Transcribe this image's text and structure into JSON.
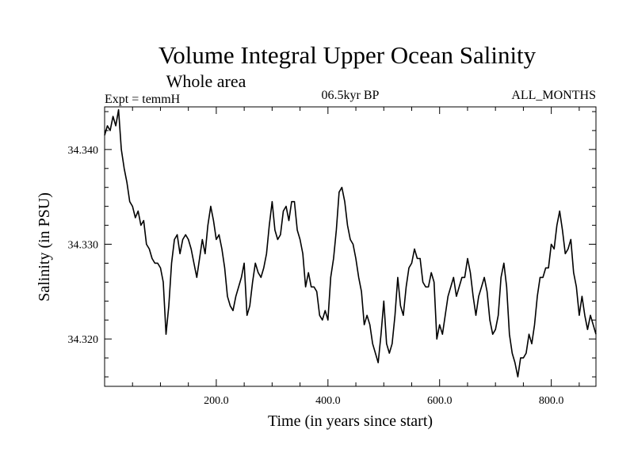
{
  "chart_data": {
    "type": "line",
    "title": "Volume Integral Upper Ocean Salinity",
    "subtitle": "Whole area",
    "annotation_left": "Expt = temmH",
    "annotation_center": "06.5kyr BP",
    "annotation_right": "ALL_MONTHS",
    "xlabel": "Time (in years since start)",
    "ylabel": "Salinity (in PSU)",
    "xlim": [
      0,
      880
    ],
    "ylim": [
      34.315,
      34.3445
    ],
    "xticks": [
      200.0,
      400.0,
      600.0,
      800.0
    ],
    "xtick_labels": [
      "200.0",
      "400.0",
      "600.0",
      "800.0"
    ],
    "yticks": [
      34.32,
      34.33,
      34.34
    ],
    "ytick_labels": [
      "34.320",
      "34.330",
      "34.340"
    ],
    "series": [
      {
        "name": "salinity",
        "x": [
          0,
          5,
          10,
          15,
          20,
          25,
          30,
          35,
          40,
          45,
          50,
          55,
          60,
          65,
          70,
          75,
          80,
          85,
          90,
          95,
          100,
          105,
          110,
          115,
          120,
          125,
          130,
          135,
          140,
          145,
          150,
          155,
          160,
          165,
          170,
          175,
          180,
          185,
          190,
          195,
          200,
          205,
          210,
          215,
          220,
          225,
          230,
          235,
          240,
          245,
          250,
          255,
          260,
          265,
          270,
          275,
          280,
          285,
          290,
          295,
          300,
          305,
          310,
          315,
          320,
          325,
          330,
          335,
          340,
          345,
          350,
          355,
          360,
          365,
          370,
          375,
          380,
          385,
          390,
          395,
          400,
          405,
          410,
          415,
          420,
          425,
          430,
          435,
          440,
          445,
          450,
          455,
          460,
          465,
          470,
          475,
          480,
          485,
          490,
          495,
          500,
          505,
          510,
          515,
          520,
          525,
          530,
          535,
          540,
          545,
          550,
          555,
          560,
          565,
          570,
          575,
          580,
          585,
          590,
          595,
          600,
          605,
          610,
          615,
          620,
          625,
          630,
          635,
          640,
          645,
          650,
          655,
          660,
          665,
          670,
          675,
          680,
          685,
          690,
          695,
          700,
          705,
          710,
          715,
          720,
          725,
          730,
          735,
          740,
          745,
          750,
          755,
          760,
          765,
          770,
          775,
          780,
          785,
          790,
          795,
          800,
          805,
          810,
          815,
          820,
          825,
          830,
          835,
          840,
          845,
          850,
          855,
          860,
          865,
          870,
          875,
          880
        ],
        "values": [
          34.3415,
          34.3425,
          34.342,
          34.3435,
          34.3425,
          34.3442,
          34.34,
          34.338,
          34.3365,
          34.3345,
          34.334,
          34.3328,
          34.3335,
          34.332,
          34.3325,
          34.33,
          34.3295,
          34.3285,
          34.328,
          34.328,
          34.3275,
          34.326,
          34.3205,
          34.3235,
          34.328,
          34.3305,
          34.331,
          34.329,
          34.3305,
          34.331,
          34.3305,
          34.3295,
          34.328,
          34.3265,
          34.3285,
          34.3305,
          34.329,
          34.332,
          34.334,
          34.3325,
          34.3305,
          34.331,
          34.3295,
          34.3275,
          34.3245,
          34.3235,
          34.323,
          34.3245,
          34.3255,
          34.3265,
          34.328,
          34.3225,
          34.3235,
          34.326,
          34.328,
          34.327,
          34.3265,
          34.3275,
          34.329,
          34.332,
          34.3345,
          34.3315,
          34.3305,
          34.331,
          34.3335,
          34.334,
          34.3325,
          34.3345,
          34.3345,
          34.3315,
          34.3305,
          34.329,
          34.3255,
          34.327,
          34.3255,
          34.3255,
          34.325,
          34.3225,
          34.322,
          34.323,
          34.322,
          34.3265,
          34.3285,
          34.3315,
          34.3355,
          34.336,
          34.3345,
          34.332,
          34.3305,
          34.33,
          34.3285,
          34.3265,
          34.325,
          34.3215,
          34.3225,
          34.3215,
          34.3195,
          34.3185,
          34.3175,
          34.3205,
          34.324,
          34.3195,
          34.3185,
          34.3195,
          34.3225,
          34.3265,
          34.3235,
          34.3225,
          34.3255,
          34.3275,
          34.328,
          34.3295,
          34.3285,
          34.3285,
          34.326,
          34.3255,
          34.3255,
          34.327,
          34.326,
          34.32,
          34.3215,
          34.3205,
          34.3225,
          34.3245,
          34.3255,
          34.3265,
          34.3245,
          34.3255,
          34.3265,
          34.3265,
          34.3285,
          34.327,
          34.3245,
          34.3225,
          34.3245,
          34.3255,
          34.3265,
          34.325,
          34.322,
          34.3205,
          34.321,
          34.3225,
          34.3265,
          34.328,
          34.3255,
          34.3205,
          34.3185,
          34.3175,
          34.316,
          34.318,
          34.318,
          34.3185,
          34.3205,
          34.3195,
          34.3215,
          34.3245,
          34.3265,
          34.3265,
          34.3275,
          34.3275,
          34.33,
          34.3295,
          34.332,
          34.3335,
          34.3315,
          34.329,
          34.3295,
          34.3305,
          34.327,
          34.3255,
          34.3225,
          34.3245,
          34.3225,
          34.321,
          34.3225,
          34.3215,
          34.3205
        ]
      }
    ]
  }
}
